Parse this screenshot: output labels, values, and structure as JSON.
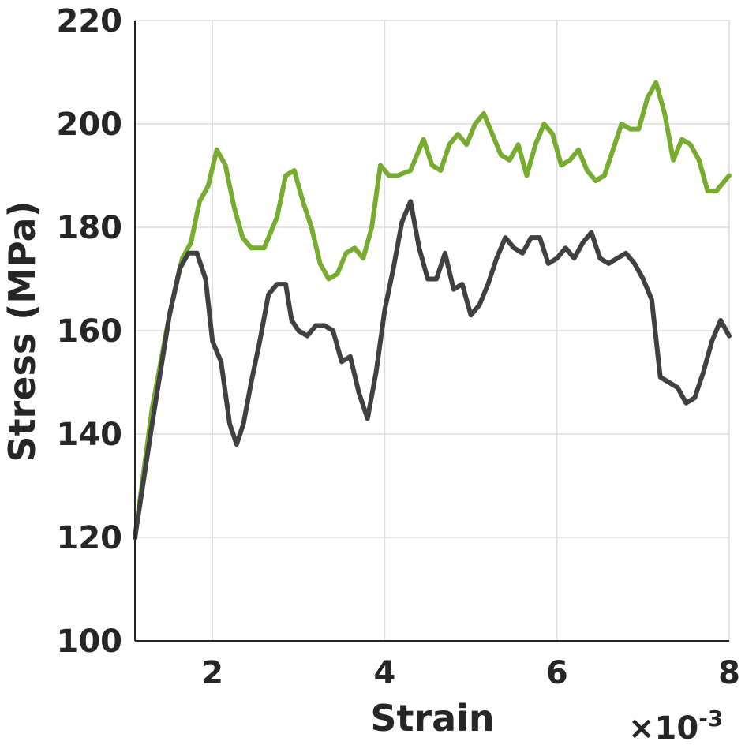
{
  "chart_data": {
    "type": "line",
    "xlabel": "Strain",
    "ylabel": "Stress (MPa)",
    "x_multiplier": "×10",
    "x_multiplier_exp": "-3",
    "xlim": [
      1.1,
      8.0
    ],
    "ylim": [
      100,
      220
    ],
    "xticks": [
      2,
      4,
      6,
      8
    ],
    "yticks": [
      100,
      120,
      140,
      160,
      180,
      200,
      220
    ],
    "grid": true,
    "series": [
      {
        "color": "#77ac30",
        "x": [
          1.1,
          1.3,
          1.5,
          1.65,
          1.75,
          1.85,
          1.95,
          2.05,
          2.15,
          2.25,
          2.35,
          2.45,
          2.6,
          2.75,
          2.85,
          2.95,
          3.05,
          3.15,
          3.25,
          3.35,
          3.45,
          3.55,
          3.65,
          3.75,
          3.85,
          3.95,
          4.05,
          4.15,
          4.3,
          4.45,
          4.55,
          4.65,
          4.75,
          4.85,
          4.95,
          5.05,
          5.15,
          5.25,
          5.35,
          5.45,
          5.55,
          5.65,
          5.75,
          5.85,
          5.95,
          6.05,
          6.15,
          6.25,
          6.35,
          6.45,
          6.55,
          6.65,
          6.75,
          6.85,
          6.95,
          7.05,
          7.15,
          7.25,
          7.35,
          7.45,
          7.55,
          7.65,
          7.75,
          7.85,
          8.0
        ],
        "y": [
          120,
          145,
          163,
          174,
          177,
          185,
          188,
          195,
          192,
          184,
          178,
          176,
          176,
          182,
          190,
          191,
          185,
          180,
          173,
          170,
          171,
          175,
          176,
          174,
          180,
          192,
          190,
          190,
          191,
          197,
          192,
          191,
          196,
          198,
          196,
          200,
          202,
          198,
          194,
          193,
          196,
          190,
          196,
          200,
          198,
          192,
          193,
          195,
          191,
          189,
          190,
          195,
          200,
          199,
          199,
          205,
          208,
          202,
          193,
          197,
          196,
          193,
          187,
          187,
          190
        ]
      },
      {
        "color": "#404040",
        "x": [
          1.1,
          1.3,
          1.5,
          1.62,
          1.72,
          1.82,
          1.92,
          2.0,
          2.1,
          2.2,
          2.28,
          2.36,
          2.45,
          2.55,
          2.65,
          2.75,
          2.85,
          2.92,
          3.0,
          3.1,
          3.2,
          3.3,
          3.4,
          3.5,
          3.6,
          3.7,
          3.8,
          3.9,
          4.0,
          4.1,
          4.2,
          4.3,
          4.4,
          4.5,
          4.6,
          4.7,
          4.8,
          4.9,
          5.0,
          5.1,
          5.2,
          5.3,
          5.4,
          5.5,
          5.6,
          5.7,
          5.8,
          5.9,
          6.0,
          6.1,
          6.2,
          6.3,
          6.4,
          6.5,
          6.6,
          6.7,
          6.8,
          6.9,
          7.0,
          7.1,
          7.2,
          7.3,
          7.4,
          7.5,
          7.6,
          7.7,
          7.8,
          7.9,
          8.0
        ],
        "y": [
          120,
          142,
          163,
          172,
          175,
          175,
          170,
          158,
          154,
          142,
          138,
          142,
          150,
          158,
          167,
          169,
          169,
          162,
          160,
          159,
          161,
          161,
          160,
          154,
          155,
          148,
          143,
          152,
          164,
          172,
          181,
          185,
          176,
          170,
          170,
          175,
          168,
          169,
          163,
          165,
          169,
          174,
          178,
          176,
          175,
          178,
          178,
          173,
          174,
          176,
          174,
          177,
          179,
          174,
          173,
          174,
          175,
          173,
          170,
          166,
          151,
          150,
          149,
          146,
          147,
          152,
          158,
          162,
          159
        ]
      }
    ]
  }
}
